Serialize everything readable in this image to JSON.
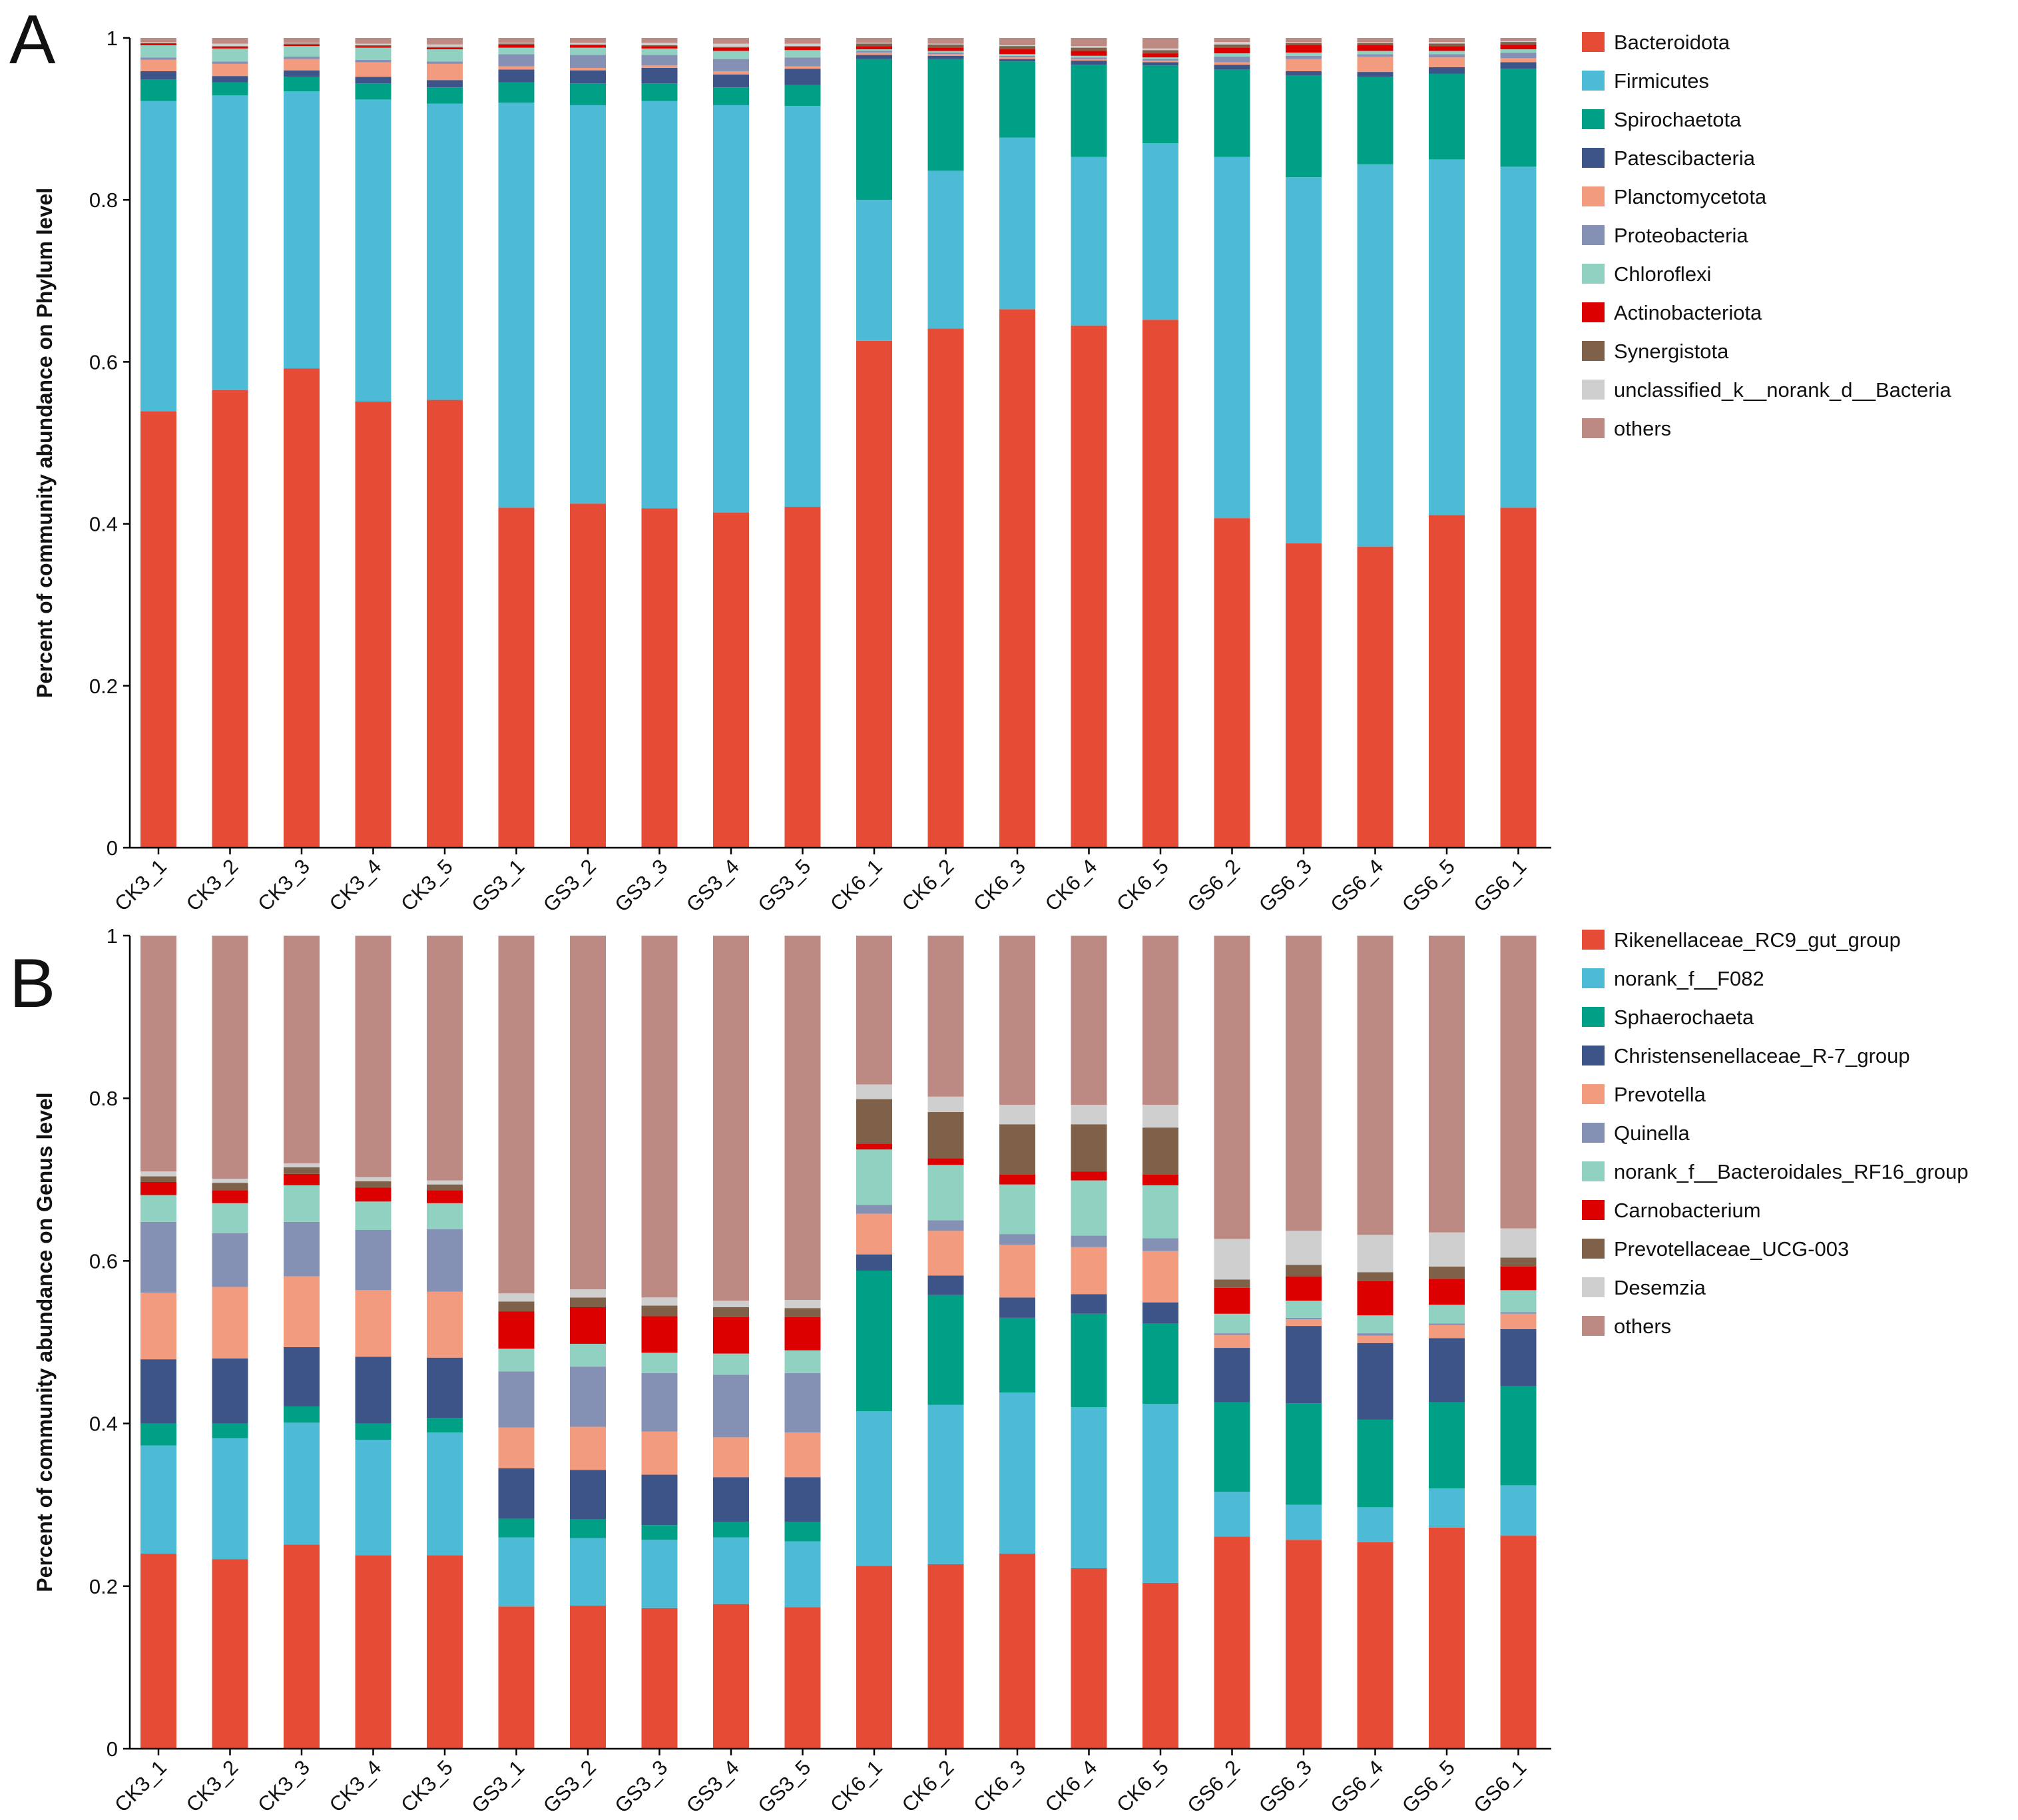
{
  "chart_data": [
    {
      "panel": "A",
      "type": "bar",
      "stacked": true,
      "ylabel": "Percent of community abundance on Phylum level",
      "xlabel": "",
      "ylim": [
        0,
        1
      ],
      "yticks": [
        "0",
        "0.2",
        "0.4",
        "0.6",
        "0.8",
        "1"
      ],
      "categories": [
        "CK3_1",
        "CK3_2",
        "CK3_3",
        "CK3_4",
        "CK3_5",
        "GS3_1",
        "GS3_2",
        "GS3_3",
        "GS3_4",
        "GS3_5",
        "CK6_1",
        "CK6_2",
        "CK6_3",
        "CK6_4",
        "CK6_5",
        "GS6_2",
        "GS6_3",
        "GS6_4",
        "GS6_5",
        "GS6_1"
      ],
      "legend_position": "right",
      "series": [
        {
          "name": "Bacteroidota",
          "color": "#E64B35",
          "values": [
            0.539,
            0.565,
            0.592,
            0.551,
            0.553,
            0.42,
            0.425,
            0.419,
            0.414,
            0.421,
            0.626,
            0.641,
            0.665,
            0.645,
            0.652,
            0.407,
            0.376,
            0.372,
            0.411,
            0.42
          ]
        },
        {
          "name": "Firmicutes",
          "color": "#4DBBD5",
          "values": [
            0.383,
            0.364,
            0.342,
            0.373,
            0.366,
            0.5,
            0.492,
            0.503,
            0.503,
            0.495,
            0.174,
            0.195,
            0.212,
            0.208,
            0.218,
            0.446,
            0.452,
            0.472,
            0.439,
            0.421
          ]
        },
        {
          "name": "Spirochaetota",
          "color": "#00A087",
          "values": [
            0.027,
            0.016,
            0.018,
            0.02,
            0.02,
            0.025,
            0.027,
            0.022,
            0.022,
            0.026,
            0.174,
            0.138,
            0.094,
            0.114,
            0.096,
            0.108,
            0.126,
            0.108,
            0.106,
            0.121
          ]
        },
        {
          "name": "Patescibacteria",
          "color": "#3C5488",
          "values": [
            0.01,
            0.008,
            0.008,
            0.008,
            0.009,
            0.016,
            0.016,
            0.019,
            0.016,
            0.02,
            0.005,
            0.004,
            0.003,
            0.005,
            0.004,
            0.006,
            0.005,
            0.006,
            0.008,
            0.008
          ]
        },
        {
          "name": "Planctomycetota",
          "color": "#F39B7F",
          "values": [
            0.014,
            0.015,
            0.014,
            0.018,
            0.02,
            0.004,
            0.003,
            0.003,
            0.004,
            0.003,
            0.003,
            0.002,
            0.002,
            0.002,
            0.002,
            0.003,
            0.015,
            0.019,
            0.012,
            0.005
          ]
        },
        {
          "name": "Proteobacteria",
          "color": "#8491B4",
          "values": [
            0.003,
            0.003,
            0.003,
            0.003,
            0.003,
            0.015,
            0.016,
            0.013,
            0.015,
            0.011,
            0.002,
            0.002,
            0.002,
            0.002,
            0.002,
            0.007,
            0.004,
            0.003,
            0.004,
            0.007
          ]
        },
        {
          "name": "Chloroflexi",
          "color": "#91D1C2",
          "values": [
            0.015,
            0.016,
            0.013,
            0.015,
            0.015,
            0.008,
            0.009,
            0.008,
            0.01,
            0.009,
            0.002,
            0.002,
            0.002,
            0.002,
            0.002,
            0.004,
            0.004,
            0.004,
            0.004,
            0.004
          ]
        },
        {
          "name": "Actinobacteriota",
          "color": "#DC0000",
          "values": [
            0.002,
            0.002,
            0.002,
            0.002,
            0.002,
            0.004,
            0.003,
            0.003,
            0.004,
            0.004,
            0.004,
            0.004,
            0.006,
            0.006,
            0.005,
            0.007,
            0.009,
            0.007,
            0.006,
            0.006
          ]
        },
        {
          "name": "Synergistota",
          "color": "#7E6148",
          "values": [
            0.001,
            0.001,
            0.001,
            0.001,
            0.001,
            0.001,
            0.001,
            0.001,
            0.001,
            0.001,
            0.003,
            0.004,
            0.004,
            0.004,
            0.004,
            0.004,
            0.003,
            0.003,
            0.003,
            0.003
          ]
        },
        {
          "name": "unclassified_k__norank_d__Bacteria",
          "color": "#CFCFCF",
          "values": [
            0.001,
            0.003,
            0.001,
            0.002,
            0.003,
            0.001,
            0.002,
            0.003,
            0.004,
            0.003,
            0.001,
            0.001,
            0.001,
            0.002,
            0.002,
            0.003,
            0.001,
            0.001,
            0.002,
            0.001
          ]
        },
        {
          "name": "others",
          "color": "#BC8A82",
          "values": [
            0.005,
            0.007,
            0.006,
            0.007,
            0.008,
            0.006,
            0.006,
            0.006,
            0.007,
            0.007,
            0.006,
            0.007,
            0.009,
            0.01,
            0.013,
            0.005,
            0.005,
            0.005,
            0.005,
            0.004
          ]
        }
      ]
    },
    {
      "panel": "B",
      "type": "bar",
      "stacked": true,
      "ylabel": "Percent of community abundance on Genus level",
      "xlabel": "",
      "ylim": [
        0,
        1
      ],
      "yticks": [
        "0",
        "0.2",
        "0.4",
        "0.6",
        "0.8",
        "1"
      ],
      "categories": [
        "CK3_1",
        "CK3_2",
        "CK3_3",
        "CK3_4",
        "CK3_5",
        "GS3_1",
        "GS3_2",
        "GS3_3",
        "GS3_4",
        "GS3_5",
        "CK6_1",
        "CK6_2",
        "CK6_3",
        "CK6_4",
        "CK6_5",
        "GS6_2",
        "GS6_3",
        "GS6_4",
        "GS6_5",
        "GS6_1"
      ],
      "legend_position": "right",
      "series": [
        {
          "name": "Rikenellaceae_RC9_gut_group",
          "color": "#E64B35",
          "values": [
            0.24,
            0.233,
            0.251,
            0.238,
            0.238,
            0.175,
            0.176,
            0.173,
            0.178,
            0.174,
            0.225,
            0.227,
            0.24,
            0.222,
            0.204,
            0.261,
            0.257,
            0.254,
            0.272,
            0.262
          ]
        },
        {
          "name": "norank_f__F082",
          "color": "#4DBBD5",
          "values": [
            0.133,
            0.149,
            0.15,
            0.142,
            0.151,
            0.085,
            0.083,
            0.084,
            0.082,
            0.081,
            0.19,
            0.196,
            0.198,
            0.198,
            0.22,
            0.055,
            0.043,
            0.043,
            0.048,
            0.062
          ]
        },
        {
          "name": "Sphaerochaeta",
          "color": "#00A087",
          "values": [
            0.027,
            0.018,
            0.02,
            0.02,
            0.018,
            0.023,
            0.023,
            0.018,
            0.019,
            0.024,
            0.173,
            0.135,
            0.092,
            0.115,
            0.099,
            0.11,
            0.125,
            0.108,
            0.106,
            0.122
          ]
        },
        {
          "name": "Christensenellaceae_R-7_group",
          "color": "#3C5488",
          "values": [
            0.079,
            0.08,
            0.073,
            0.082,
            0.074,
            0.062,
            0.061,
            0.062,
            0.055,
            0.055,
            0.02,
            0.024,
            0.025,
            0.024,
            0.026,
            0.067,
            0.095,
            0.094,
            0.079,
            0.07
          ]
        },
        {
          "name": "Prevotella",
          "color": "#F39B7F",
          "values": [
            0.082,
            0.088,
            0.087,
            0.082,
            0.081,
            0.05,
            0.053,
            0.053,
            0.049,
            0.055,
            0.05,
            0.055,
            0.065,
            0.058,
            0.063,
            0.016,
            0.008,
            0.009,
            0.016,
            0.019
          ]
        },
        {
          "name": "Quinella",
          "color": "#8491B4",
          "values": [
            0.087,
            0.066,
            0.067,
            0.074,
            0.077,
            0.069,
            0.074,
            0.072,
            0.077,
            0.073,
            0.011,
            0.013,
            0.013,
            0.014,
            0.016,
            0.002,
            0.002,
            0.003,
            0.002,
            0.002
          ]
        },
        {
          "name": "norank_f__Bacteroidales_RF16_group",
          "color": "#91D1C2",
          "values": [
            0.033,
            0.037,
            0.045,
            0.035,
            0.032,
            0.028,
            0.028,
            0.025,
            0.026,
            0.028,
            0.068,
            0.068,
            0.061,
            0.068,
            0.065,
            0.024,
            0.021,
            0.022,
            0.023,
            0.027
          ]
        },
        {
          "name": "Carnobacterium",
          "color": "#DC0000",
          "values": [
            0.016,
            0.016,
            0.014,
            0.017,
            0.016,
            0.046,
            0.045,
            0.045,
            0.045,
            0.041,
            0.007,
            0.008,
            0.012,
            0.011,
            0.013,
            0.032,
            0.03,
            0.042,
            0.032,
            0.029
          ]
        },
        {
          "name": "Prevotellaceae_UCG-003",
          "color": "#7E6148",
          "values": [
            0.007,
            0.009,
            0.008,
            0.008,
            0.007,
            0.012,
            0.012,
            0.013,
            0.012,
            0.011,
            0.055,
            0.057,
            0.062,
            0.058,
            0.058,
            0.01,
            0.014,
            0.011,
            0.015,
            0.011
          ]
        },
        {
          "name": "Desemzia",
          "color": "#CFCFCF",
          "values": [
            0.006,
            0.005,
            0.005,
            0.005,
            0.005,
            0.01,
            0.01,
            0.01,
            0.008,
            0.01,
            0.018,
            0.019,
            0.024,
            0.024,
            0.028,
            0.05,
            0.042,
            0.046,
            0.042,
            0.036
          ]
        },
        {
          "name": "others",
          "color": "#BC8A82",
          "values": [
            0.29,
            0.299,
            0.28,
            0.297,
            0.301,
            0.44,
            0.435,
            0.445,
            0.449,
            0.448,
            0.183,
            0.198,
            0.208,
            0.208,
            0.208,
            0.373,
            0.363,
            0.368,
            0.365,
            0.36
          ]
        }
      ]
    }
  ]
}
